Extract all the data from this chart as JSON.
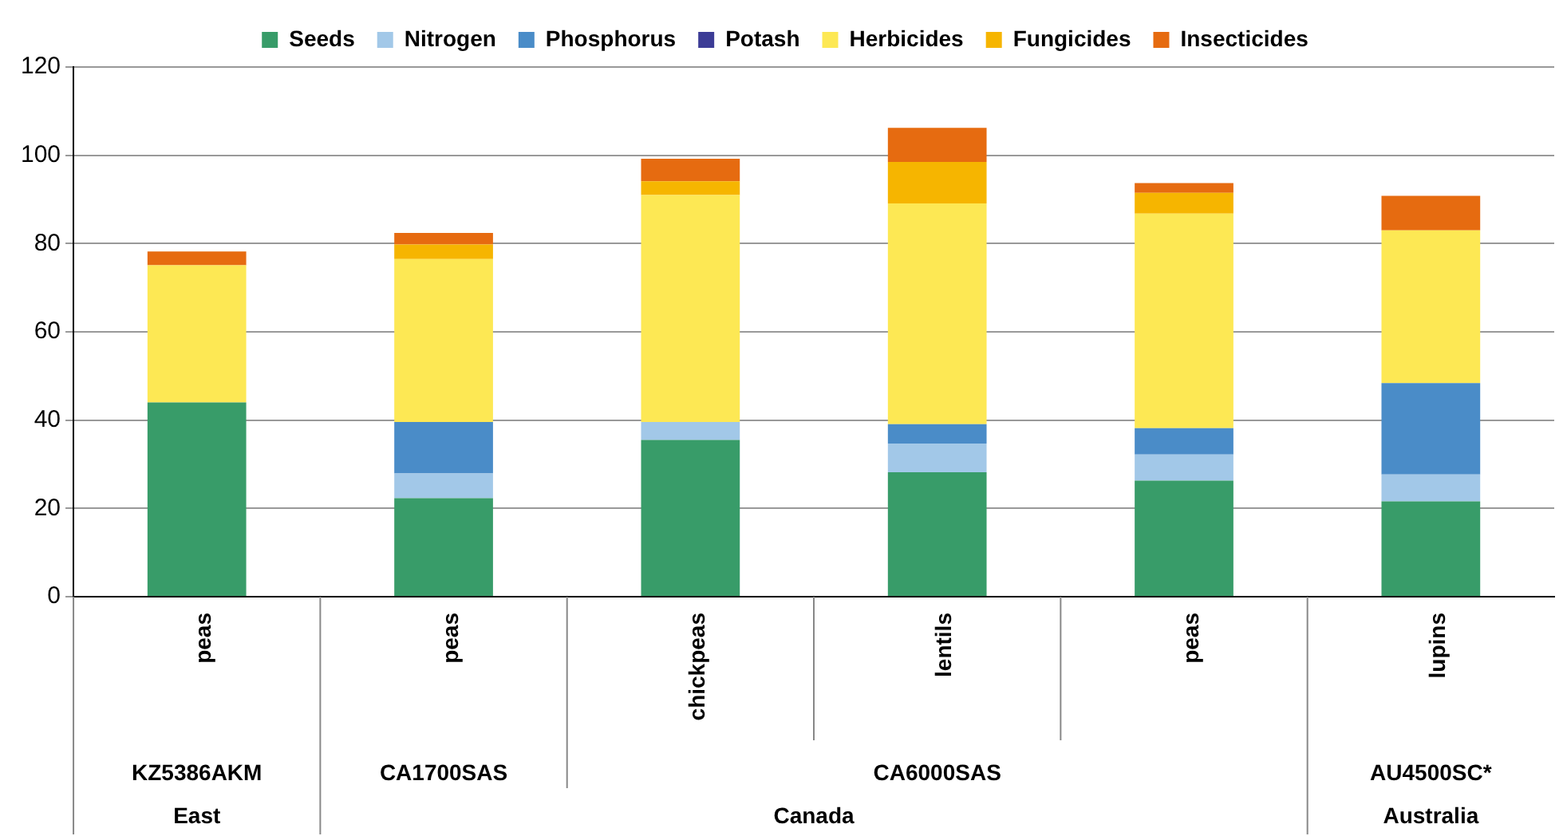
{
  "chart_data": {
    "type": "bar",
    "stacked": true,
    "categories": [
      "peas",
      "peas",
      "chickpeas",
      "lentils",
      "peas",
      "lupins"
    ],
    "series": [
      {
        "name": "Seeds",
        "color": "#389c69",
        "values": [
          44,
          22.3,
          35.5,
          28.2,
          26.3,
          21.6
        ]
      },
      {
        "name": "Nitrogen",
        "color": "#a2c8e8",
        "values": [
          0,
          5.6,
          4.1,
          6.5,
          5.9,
          6.1
        ]
      },
      {
        "name": "Phosphorus",
        "color": "#4a8cc8",
        "values": [
          0,
          11.7,
          0,
          4.4,
          6.0,
          20.7
        ]
      },
      {
        "name": "Potash",
        "color": "#3c3c96",
        "values": [
          0,
          0,
          0,
          0,
          0,
          0
        ]
      },
      {
        "name": "Herbicides",
        "color": "#fde854",
        "values": [
          31.1,
          36.9,
          51.4,
          50.0,
          48.6,
          34.6
        ]
      },
      {
        "name": "Fungicides",
        "color": "#f6b500",
        "values": [
          0,
          3.3,
          3.1,
          9.4,
          4.7,
          0
        ]
      },
      {
        "name": "Insecticides",
        "color": "#e66b10",
        "values": [
          3.1,
          2.6,
          5.1,
          7.7,
          2.2,
          7.8
        ]
      }
    ],
    "ylim": [
      0,
      120
    ],
    "yticks": [
      0,
      20,
      40,
      60,
      80,
      100,
      120
    ],
    "grid": "y",
    "legend": "top",
    "annotations": [
      "KZ5386AKM",
      "CA1700SAS",
      "CA6000SAS",
      "AU4500SC*",
      "East",
      "Canada",
      "Australia"
    ]
  }
}
